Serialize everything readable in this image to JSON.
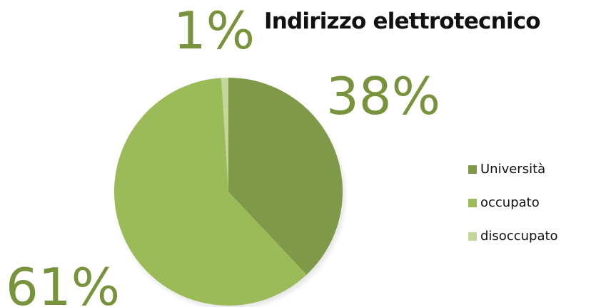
{
  "chart_data": {
    "type": "pie",
    "title": "Indirizzo elettrotecnico",
    "categories": [
      "Università",
      "occupato",
      "disoccupato"
    ],
    "values": [
      38,
      61,
      1
    ],
    "labels": [
      "38%",
      "61%",
      "1%"
    ],
    "colors": [
      "#7e9a48",
      "#9bbb59",
      "#c3d69b"
    ],
    "label_color": "#77933c",
    "legend_position": "right"
  }
}
